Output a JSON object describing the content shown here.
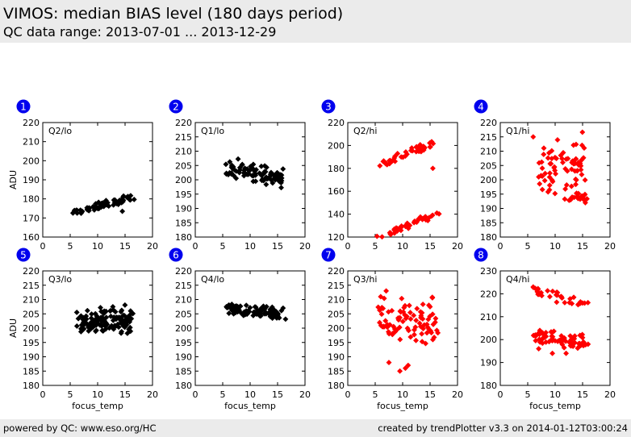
{
  "header": {
    "title": "VIMOS: median BIAS level (180 days period)",
    "subtitle": "QC data range: 2013-07-01 ... 2013-12-29"
  },
  "footer": {
    "left": "powered by QC: www.eso.org/HC",
    "right": "created by trendPlotter v3.3 on 2014-01-12T03:00:24"
  },
  "colors": {
    "black_series": "#000000",
    "red_series": "#ff0000",
    "badge": "#0000ee"
  },
  "chart_data": [
    {
      "type": "scatter",
      "index": "1",
      "label": "Q2/lo",
      "color": "black",
      "xlim": [
        0,
        20
      ],
      "ylim": [
        160,
        220
      ],
      "xticks": [
        0,
        5,
        10,
        15,
        20
      ],
      "yticks": [
        160,
        170,
        180,
        190,
        200,
        210,
        220
      ],
      "ylabel": "ADU",
      "xlabel": "",
      "clusters": [
        {
          "x0": 5.8,
          "x1": 16.5,
          "y0": 172.5,
          "y1": 181,
          "spread": 0.9,
          "n": 70
        }
      ],
      "points": [
        [
          14.5,
          173.5
        ]
      ]
    },
    {
      "type": "scatter",
      "index": "2",
      "label": "Q1/lo",
      "color": "black",
      "xlim": [
        0,
        20
      ],
      "ylim": [
        180,
        220
      ],
      "xticks": [
        0,
        5,
        10,
        15,
        20
      ],
      "yticks": [
        180,
        185,
        190,
        195,
        200,
        205,
        210,
        215,
        220
      ],
      "ylabel": "",
      "xlabel": "",
      "clusters": [
        {
          "x0": 6,
          "x1": 16,
          "y0": 204,
          "y1": 200.5,
          "spread": 1.4,
          "n": 90
        }
      ],
      "points": [
        [
          11,
          199.5
        ]
      ]
    },
    {
      "type": "scatter",
      "index": "3",
      "label": "Q2/hi",
      "color": "red",
      "xlim": [
        0,
        20
      ],
      "ylim": [
        120,
        220
      ],
      "xticks": [
        0,
        5,
        10,
        15,
        20
      ],
      "yticks": [
        120,
        140,
        160,
        180,
        200,
        220
      ],
      "ylabel": "",
      "xlabel": "",
      "clusters": [
        {
          "x0": 6,
          "x1": 16,
          "y0": 182,
          "y1": 203,
          "spread": 1.5,
          "n": 45
        },
        {
          "x0": 6,
          "x1": 16.5,
          "y0": 121,
          "y1": 141,
          "spread": 1.2,
          "n": 40
        }
      ],
      "points": [
        [
          15.5,
          180
        ]
      ]
    },
    {
      "type": "scatter",
      "index": "4",
      "label": "Q1/hi",
      "color": "red",
      "xlim": [
        0,
        20
      ],
      "ylim": [
        180,
        220
      ],
      "xticks": [
        0,
        5,
        10,
        15,
        20
      ],
      "yticks": [
        180,
        185,
        190,
        195,
        200,
        205,
        210,
        215,
        220
      ],
      "ylabel": "",
      "xlabel": "",
      "clusters": [
        {
          "x0": 7,
          "x1": 15.5,
          "y0": 205,
          "y1": 205,
          "spread": 4.5,
          "n": 70
        },
        {
          "x0": 12,
          "x1": 15.5,
          "y0": 194,
          "y1": 194,
          "spread": 0.8,
          "n": 18
        }
      ],
      "points": [
        [
          6,
          215
        ],
        [
          7,
          201
        ],
        [
          15.5,
          192
        ]
      ]
    },
    {
      "type": "scatter",
      "index": "5",
      "label": "Q3/lo",
      "color": "black",
      "xlim": [
        0,
        20
      ],
      "ylim": [
        180,
        220
      ],
      "xticks": [
        0,
        5,
        10,
        15,
        20
      ],
      "yticks": [
        180,
        185,
        190,
        195,
        200,
        205,
        210,
        215,
        220
      ],
      "ylabel": "ADU",
      "xlabel": "focus_temp",
      "clusters": [
        {
          "x0": 6,
          "x1": 16,
          "y0": 202.5,
          "y1": 202.5,
          "spread": 2.3,
          "n": 120
        }
      ],
      "points": [
        [
          7.2,
          199.2
        ],
        [
          16,
          206
        ],
        [
          11,
          199
        ]
      ]
    },
    {
      "type": "scatter",
      "index": "6",
      "label": "Q4/lo",
      "color": "black",
      "xlim": [
        0,
        20
      ],
      "ylim": [
        180,
        220
      ],
      "xticks": [
        0,
        5,
        10,
        15,
        20
      ],
      "yticks": [
        180,
        185,
        190,
        195,
        200,
        205,
        210,
        215,
        220
      ],
      "ylabel": "",
      "xlabel": "focus_temp",
      "clusters": [
        {
          "x0": 5.5,
          "x1": 16,
          "y0": 207.5,
          "y1": 204.5,
          "spread": 1.1,
          "n": 100
        }
      ],
      "points": [
        [
          7,
          205
        ],
        [
          16,
          207
        ]
      ]
    },
    {
      "type": "scatter",
      "index": "7",
      "label": "Q3/hi",
      "color": "red",
      "xlim": [
        0,
        20
      ],
      "ylim": [
        180,
        220
      ],
      "xticks": [
        0,
        5,
        10,
        15,
        20
      ],
      "yticks": [
        180,
        185,
        190,
        195,
        200,
        205,
        210,
        215,
        220
      ],
      "ylabel": "",
      "xlabel": "focus_temp",
      "clusters": [
        {
          "x0": 6,
          "x1": 16,
          "y0": 203,
          "y1": 202,
          "spread": 3.5,
          "n": 85
        }
      ],
      "points": [
        [
          7,
          213
        ],
        [
          7.5,
          188
        ],
        [
          9.5,
          185
        ],
        [
          10.5,
          186
        ],
        [
          11,
          187
        ],
        [
          6,
          211
        ],
        [
          15.5,
          196
        ]
      ]
    },
    {
      "type": "scatter",
      "index": "8",
      "label": "Q4/hi",
      "color": "red",
      "xlim": [
        0,
        20
      ],
      "ylim": [
        180,
        230
      ],
      "xticks": [
        0,
        5,
        10,
        15,
        20
      ],
      "yticks": [
        180,
        190,
        200,
        210,
        220,
        230
      ],
      "ylabel": "",
      "xlabel": "focus_temp",
      "clusters": [
        {
          "x0": 6,
          "x1": 16,
          "y0": 221.5,
          "y1": 215.5,
          "spread": 1.1,
          "n": 35
        },
        {
          "x0": 6,
          "x1": 15.5,
          "y0": 201.5,
          "y1": 199,
          "spread": 1.6,
          "n": 70
        }
      ],
      "points": [
        [
          6,
          223
        ],
        [
          7,
          196
        ],
        [
          9.5,
          194
        ],
        [
          12,
          194
        ],
        [
          16,
          198
        ]
      ]
    }
  ]
}
